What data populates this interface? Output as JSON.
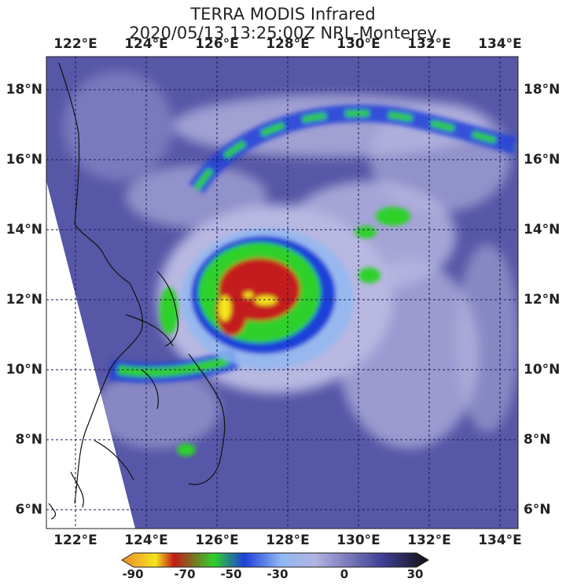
{
  "title_line1": "TERRA MODIS Infrared",
  "title_line2": "2020/05/13 13:25:00Z NRL-Monterey",
  "lon_labels": [
    "122°E",
    "124°E",
    "126°E",
    "128°E",
    "130°E",
    "132°E",
    "134°E"
  ],
  "lat_labels": [
    "18°N",
    "16°N",
    "14°N",
    "12°N",
    "10°N",
    "8°N",
    "6°N"
  ],
  "colorbar": {
    "ticks": [
      "-90",
      "-70",
      "-50",
      "-30",
      "0",
      "30"
    ],
    "colors": {
      "orange": "#f08a2a",
      "yellow": "#f4e51e",
      "red": "#c41a1a",
      "green": "#2fd02a",
      "blue": "#1d3fd8",
      "light_blue": "#8fb8f2",
      "lavender": "#b3b3e0",
      "navy": "#3f3f95",
      "black": "#111111"
    }
  },
  "map": {
    "background": "#5757a7",
    "cloud_color": "#c9c9ec",
    "coast_color": "#111111",
    "grid_color": "#1a1a55",
    "nodata_color": "#ffffff"
  }
}
